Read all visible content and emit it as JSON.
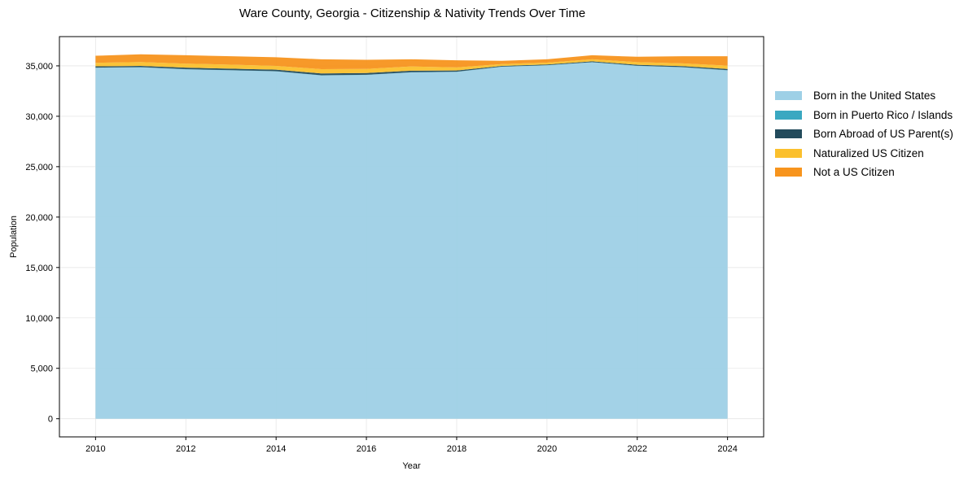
{
  "chart_data": {
    "type": "area",
    "stacked": true,
    "title": "Ware County, Georgia - Citizenship & Nativity Trends Over Time",
    "xlabel": "Year",
    "ylabel": "Population",
    "x": [
      2010,
      2011,
      2012,
      2013,
      2014,
      2015,
      2016,
      2017,
      2018,
      2019,
      2020,
      2021,
      2022,
      2023,
      2024
    ],
    "xticks": [
      2010,
      2012,
      2014,
      2016,
      2018,
      2020,
      2022,
      2024
    ],
    "xtick_labels": [
      "2010",
      "2012",
      "2014",
      "2016",
      "2018",
      "2020",
      "2022",
      "2024"
    ],
    "yticks": [
      0,
      5000,
      10000,
      15000,
      20000,
      25000,
      30000,
      35000
    ],
    "ytick_labels": [
      "0",
      "5,000",
      "10,000",
      "15,000",
      "20,000",
      "25,000",
      "30,000",
      "35,000"
    ],
    "xlim": [
      2009.2,
      2024.8
    ],
    "ylim": [
      -1800,
      37900
    ],
    "grid": true,
    "legend_position": "right-outside",
    "series": [
      {
        "name": "Born in the United States",
        "color": "#9ed0e6",
        "values": [
          34800,
          34850,
          34650,
          34550,
          34450,
          34050,
          34100,
          34350,
          34400,
          34900,
          35050,
          35350,
          35000,
          34850,
          34550
        ]
      },
      {
        "name": "Born in Puerto Rico / Islands",
        "color": "#3aa8c1",
        "values": [
          20,
          20,
          20,
          20,
          20,
          20,
          20,
          20,
          20,
          20,
          20,
          20,
          20,
          20,
          20
        ]
      },
      {
        "name": "Born Abroad of US Parent(s)",
        "color": "#234b5c",
        "values": [
          130,
          130,
          150,
          150,
          150,
          180,
          170,
          150,
          120,
          80,
          70,
          80,
          90,
          110,
          120
        ]
      },
      {
        "name": "Naturalized US Citizen",
        "color": "#fbc02d",
        "values": [
          350,
          380,
          400,
          400,
          380,
          420,
          400,
          420,
          300,
          180,
          180,
          200,
          260,
          270,
          330
        ]
      },
      {
        "name": "Not a US Citizen",
        "color": "#f7941d",
        "values": [
          700,
          770,
          830,
          830,
          850,
          980,
          910,
          710,
          710,
          320,
          330,
          400,
          530,
          700,
          930
        ]
      }
    ]
  }
}
